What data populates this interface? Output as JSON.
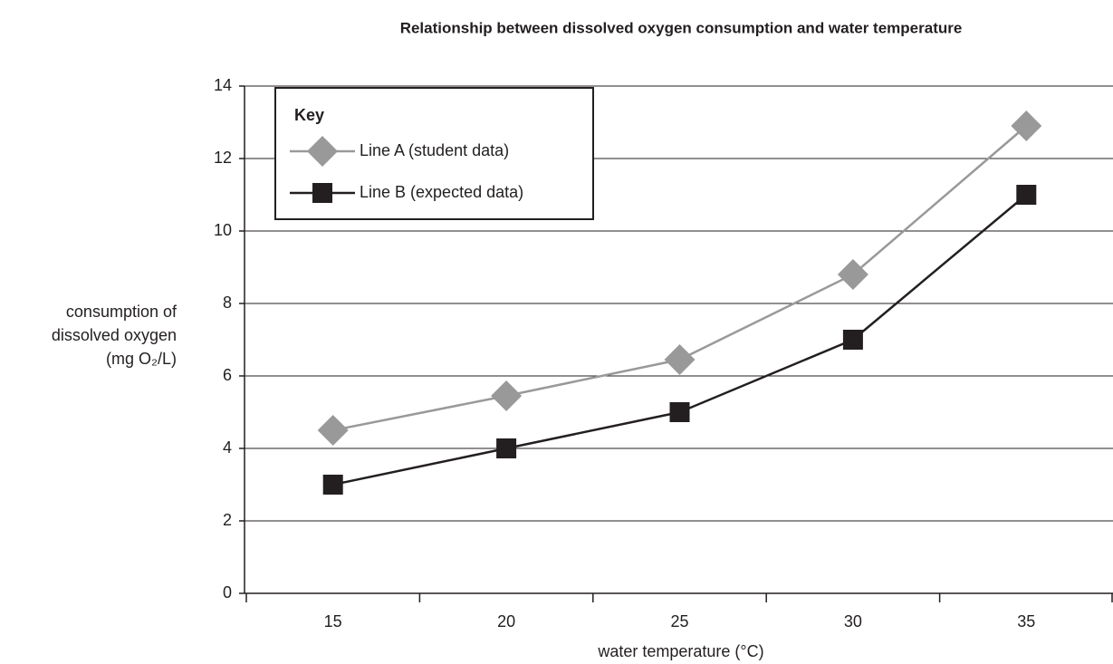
{
  "chart_data": {
    "type": "line",
    "title": "Relationship between dissolved oxygen consumption and water temperature",
    "x_label": "water temperature (°C)",
    "y_label": [
      "consumption of",
      "dissolved oxygen",
      "(mg O₂/L)"
    ],
    "categories": [
      "15",
      "20",
      "25",
      "30",
      "35"
    ],
    "series": [
      {
        "name": "Line A (student data)",
        "color": "#999999",
        "marker": "diamond",
        "values": [
          4.5,
          5.45,
          6.45,
          8.8,
          12.9
        ]
      },
      {
        "name": "Line B (expected data)",
        "color": "#231f20",
        "marker": "square",
        "values": [
          3,
          4,
          5,
          7,
          11
        ]
      }
    ],
    "legend_title": "Key",
    "legend_position": "upper left",
    "ylim": [
      0,
      14
    ],
    "yticks": [
      0,
      2,
      4,
      6,
      8,
      10,
      12,
      14
    ],
    "grid": true
  }
}
